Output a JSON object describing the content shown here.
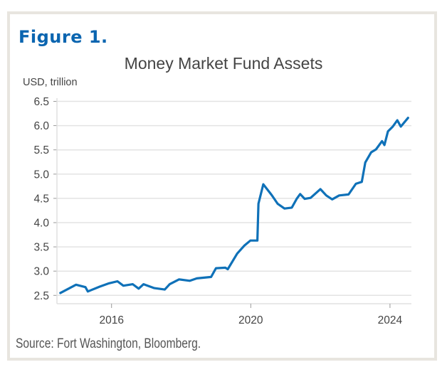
{
  "figure_label": "Figure 1.",
  "source": "Source: Fort Washington, Bloomberg.",
  "chart_data": {
    "type": "line",
    "title": "Money Market Fund Assets",
    "ylabel": "USD, trillion",
    "xlabel": "",
    "ylim": [
      2.5,
      6.5
    ],
    "xlim": [
      2014.5,
      2024.55
    ],
    "yticks": [
      "2.5",
      "3.0",
      "3.5",
      "4.0",
      "4.5",
      "5.0",
      "5.5",
      "6.0",
      "6.5"
    ],
    "xticks": [
      "2016",
      "2020",
      "2024"
    ],
    "grid": "horizontal",
    "color": "#0f71b8",
    "series": [
      {
        "x": [
          2014.53,
          2014.98,
          2015.25,
          2015.32,
          2015.66,
          2015.93,
          2016.17,
          2016.34,
          2016.61,
          2016.78,
          2016.92,
          2017.23,
          2017.53,
          2017.67,
          2017.94,
          2018.25,
          2018.45,
          2018.86,
          2019.0,
          2019.27,
          2019.34,
          2019.61,
          2019.82,
          2019.99,
          2020.19,
          2020.22,
          2020.36,
          2020.6,
          2020.77,
          2020.97,
          2021.18,
          2021.32,
          2021.42,
          2021.55,
          2021.72,
          2022.0,
          2022.17,
          2022.34,
          2022.54,
          2022.81,
          2023.02,
          2023.19,
          2023.29,
          2023.46,
          2023.6,
          2023.77,
          2023.84,
          2023.94,
          2024.08,
          2024.21,
          2024.31,
          2024.52
        ],
        "y": [
          2.55,
          2.72,
          2.67,
          2.58,
          2.68,
          2.75,
          2.79,
          2.7,
          2.73,
          2.64,
          2.73,
          2.65,
          2.62,
          2.73,
          2.83,
          2.8,
          2.85,
          2.88,
          3.06,
          3.07,
          3.04,
          3.36,
          3.53,
          3.63,
          3.63,
          4.39,
          4.79,
          4.57,
          4.39,
          4.29,
          4.31,
          4.49,
          4.59,
          4.49,
          4.51,
          4.69,
          4.56,
          4.48,
          4.56,
          4.58,
          4.8,
          4.84,
          5.24,
          5.45,
          5.51,
          5.68,
          5.6,
          5.88,
          5.98,
          6.11,
          5.98,
          6.16
        ]
      }
    ]
  }
}
